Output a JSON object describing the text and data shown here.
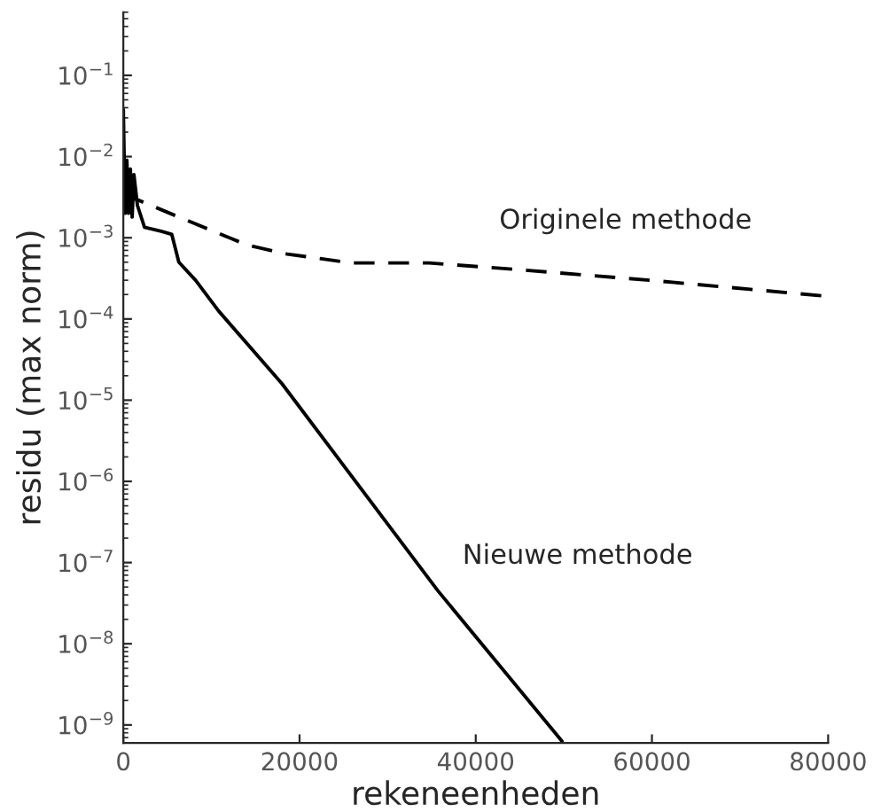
{
  "chart_data": {
    "type": "line",
    "xlabel": "rekeneenheden",
    "ylabel": "residu (max norm)",
    "log": "y",
    "grid": false,
    "marker": "none",
    "xlim": [
      0,
      80000
    ],
    "xticks": [
      0,
      20000,
      40000,
      60000,
      80000
    ],
    "ylim": [
      6e-10,
      0.6
    ],
    "yticks": [
      {
        "value": 0.1,
        "label": "10$^{−1}$"
      },
      {
        "value": 0.01,
        "label": "10$^{−2}$"
      },
      {
        "value": 0.001,
        "label": "10$^{−3}$"
      },
      {
        "value": 0.0001,
        "label": "10$^{−4}$"
      },
      {
        "value": 1e-05,
        "label": "10$^{−5}$"
      },
      {
        "value": 1e-06,
        "label": "10$^{−6}$"
      },
      {
        "value": 1e-07,
        "label": "10$^{−7}$"
      },
      {
        "value": 1e-08,
        "label": "10$^{−8}$"
      },
      {
        "value": 1e-09,
        "label": "10$^{−9}$"
      }
    ],
    "series": [
      {
        "name": "Originele methode",
        "color": "#000000",
        "line_style": "dashed",
        "x": [
          0,
          1400,
          6300,
          14100,
          18600,
          25900,
          34700,
          45500,
          59800,
          80000
        ],
        "values": [
          0.003,
          0.003,
          0.0018,
          0.00081,
          0.00063,
          0.00049,
          0.00049,
          0.0004,
          0.0003,
          0.00019
        ]
      },
      {
        "name": "Nieuwe methode",
        "color": "#000000",
        "line_style": "solid",
        "x": [
          0,
          200,
          400,
          600,
          800,
          1000,
          1200,
          1600,
          2400,
          4300,
          5500,
          6300,
          8200,
          10800,
          18000,
          35700,
          49800
        ],
        "values": [
          0.038,
          0.002,
          0.009,
          0.002,
          0.007,
          0.0018,
          0.006,
          0.0025,
          0.00135,
          0.0012,
          0.0011,
          0.0005,
          0.0003,
          0.000126,
          1.6e-05,
          4.5e-08,
          6.3e-10
        ]
      }
    ]
  }
}
